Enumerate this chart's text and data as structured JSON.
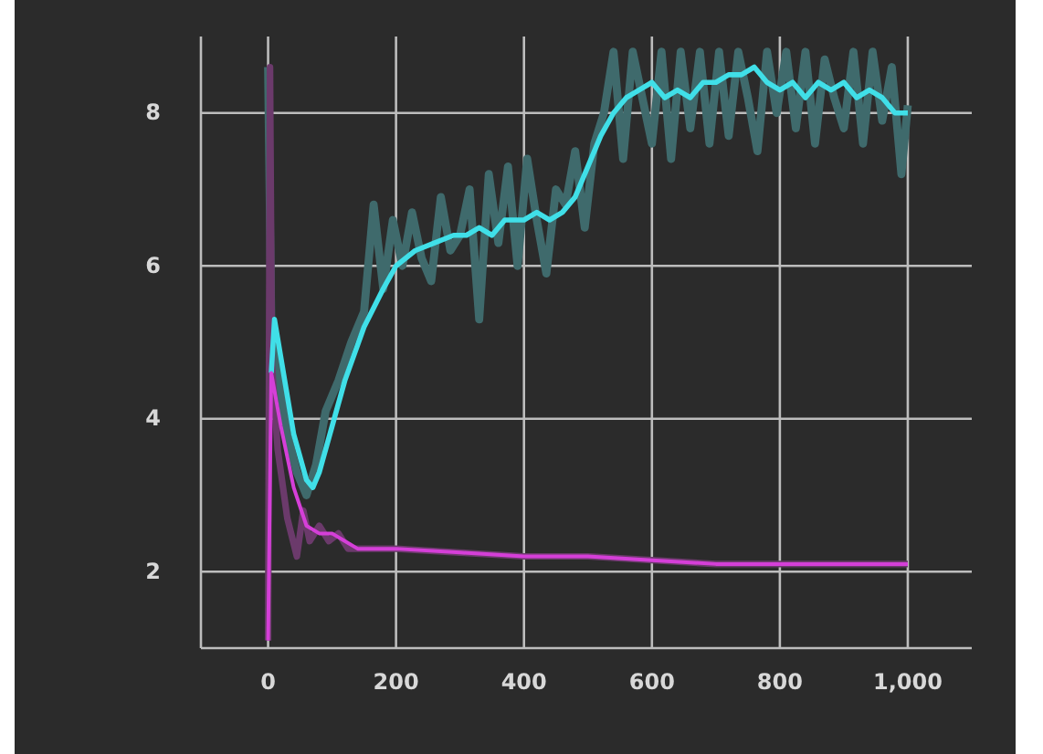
{
  "chart_data": {
    "type": "line",
    "xlim": [
      -105,
      1100
    ],
    "ylim": [
      1,
      9
    ],
    "xticks": [
      0,
      200,
      400,
      600,
      800,
      {
        "value": 1000,
        "label": "1,000"
      }
    ],
    "yticks": [
      2,
      4,
      6,
      8
    ],
    "grid": true,
    "marker": "none",
    "line_style": "solid",
    "series": [
      {
        "color": "#3f6a6c",
        "x": [
          0,
          5,
          15,
          30,
          45,
          60,
          75,
          90,
          110,
          130,
          150,
          165,
          180,
          195,
          210,
          225,
          240,
          255,
          270,
          285,
          300,
          315,
          330,
          345,
          360,
          375,
          390,
          405,
          420,
          435,
          450,
          465,
          480,
          495,
          510,
          525,
          540,
          555,
          570,
          585,
          600,
          615,
          630,
          645,
          660,
          675,
          690,
          705,
          720,
          735,
          750,
          765,
          780,
          795,
          810,
          825,
          840,
          855,
          870,
          885,
          900,
          915,
          930,
          945,
          960,
          975,
          990,
          1000
        ],
        "values": [
          8.6,
          5.2,
          4.6,
          3.8,
          3.3,
          3.0,
          3.4,
          4.1,
          4.5,
          5.0,
          5.4,
          6.8,
          5.7,
          6.6,
          6.0,
          6.7,
          6.1,
          5.8,
          6.9,
          6.2,
          6.4,
          7.0,
          5.3,
          7.2,
          6.3,
          7.3,
          6.0,
          7.4,
          6.6,
          5.9,
          7.0,
          6.8,
          7.5,
          6.5,
          7.6,
          8.0,
          8.8,
          7.4,
          8.8,
          8.2,
          7.6,
          8.8,
          7.4,
          8.8,
          7.8,
          8.8,
          7.6,
          8.8,
          7.7,
          8.8,
          8.2,
          7.5,
          8.8,
          8.0,
          8.8,
          7.8,
          8.8,
          7.6,
          8.7,
          8.2,
          7.8,
          8.8,
          7.6,
          8.8,
          7.9,
          8.6,
          7.2,
          8.1
        ]
      },
      {
        "color": "#6b3a6b",
        "x": [
          0,
          3,
          6,
          15,
          30,
          45,
          55,
          65,
          80,
          95,
          110,
          125,
          140,
          170,
          200,
          300,
          400,
          500,
          600,
          700,
          800,
          900,
          1000
        ],
        "values": [
          1.1,
          8.6,
          4.7,
          3.6,
          2.7,
          2.2,
          2.8,
          2.4,
          2.6,
          2.4,
          2.5,
          2.3,
          2.3,
          2.3,
          2.3,
          2.25,
          2.2,
          2.2,
          2.15,
          2.1,
          2.1,
          2.1,
          2.1
        ]
      },
      {
        "color": "#40dfe8",
        "x": [
          5,
          10,
          20,
          40,
          60,
          70,
          80,
          100,
          120,
          150,
          180,
          200,
          230,
          260,
          290,
          310,
          330,
          350,
          370,
          400,
          420,
          440,
          460,
          480,
          500,
          520,
          540,
          560,
          580,
          600,
          620,
          640,
          660,
          680,
          700,
          720,
          740,
          760,
          780,
          800,
          820,
          840,
          860,
          880,
          900,
          920,
          940,
          960,
          980,
          1000
        ],
        "values": [
          4.6,
          5.3,
          4.8,
          3.8,
          3.2,
          3.1,
          3.3,
          3.9,
          4.5,
          5.2,
          5.7,
          6.0,
          6.2,
          6.3,
          6.4,
          6.4,
          6.5,
          6.4,
          6.6,
          6.6,
          6.7,
          6.6,
          6.7,
          6.9,
          7.3,
          7.7,
          8.0,
          8.2,
          8.3,
          8.4,
          8.2,
          8.3,
          8.2,
          8.4,
          8.4,
          8.5,
          8.5,
          8.6,
          8.4,
          8.3,
          8.4,
          8.2,
          8.4,
          8.3,
          8.4,
          8.2,
          8.3,
          8.2,
          8.0,
          8.0
        ]
      },
      {
        "color": "#d53fd8",
        "x": [
          0,
          5,
          20,
          40,
          60,
          80,
          100,
          120,
          140,
          200,
          300,
          400,
          500,
          600,
          700,
          800,
          900,
          1000
        ],
        "values": [
          1.1,
          4.6,
          3.9,
          3.1,
          2.6,
          2.5,
          2.5,
          2.4,
          2.3,
          2.3,
          2.25,
          2.2,
          2.2,
          2.15,
          2.1,
          2.1,
          2.1,
          2.1
        ]
      }
    ]
  }
}
